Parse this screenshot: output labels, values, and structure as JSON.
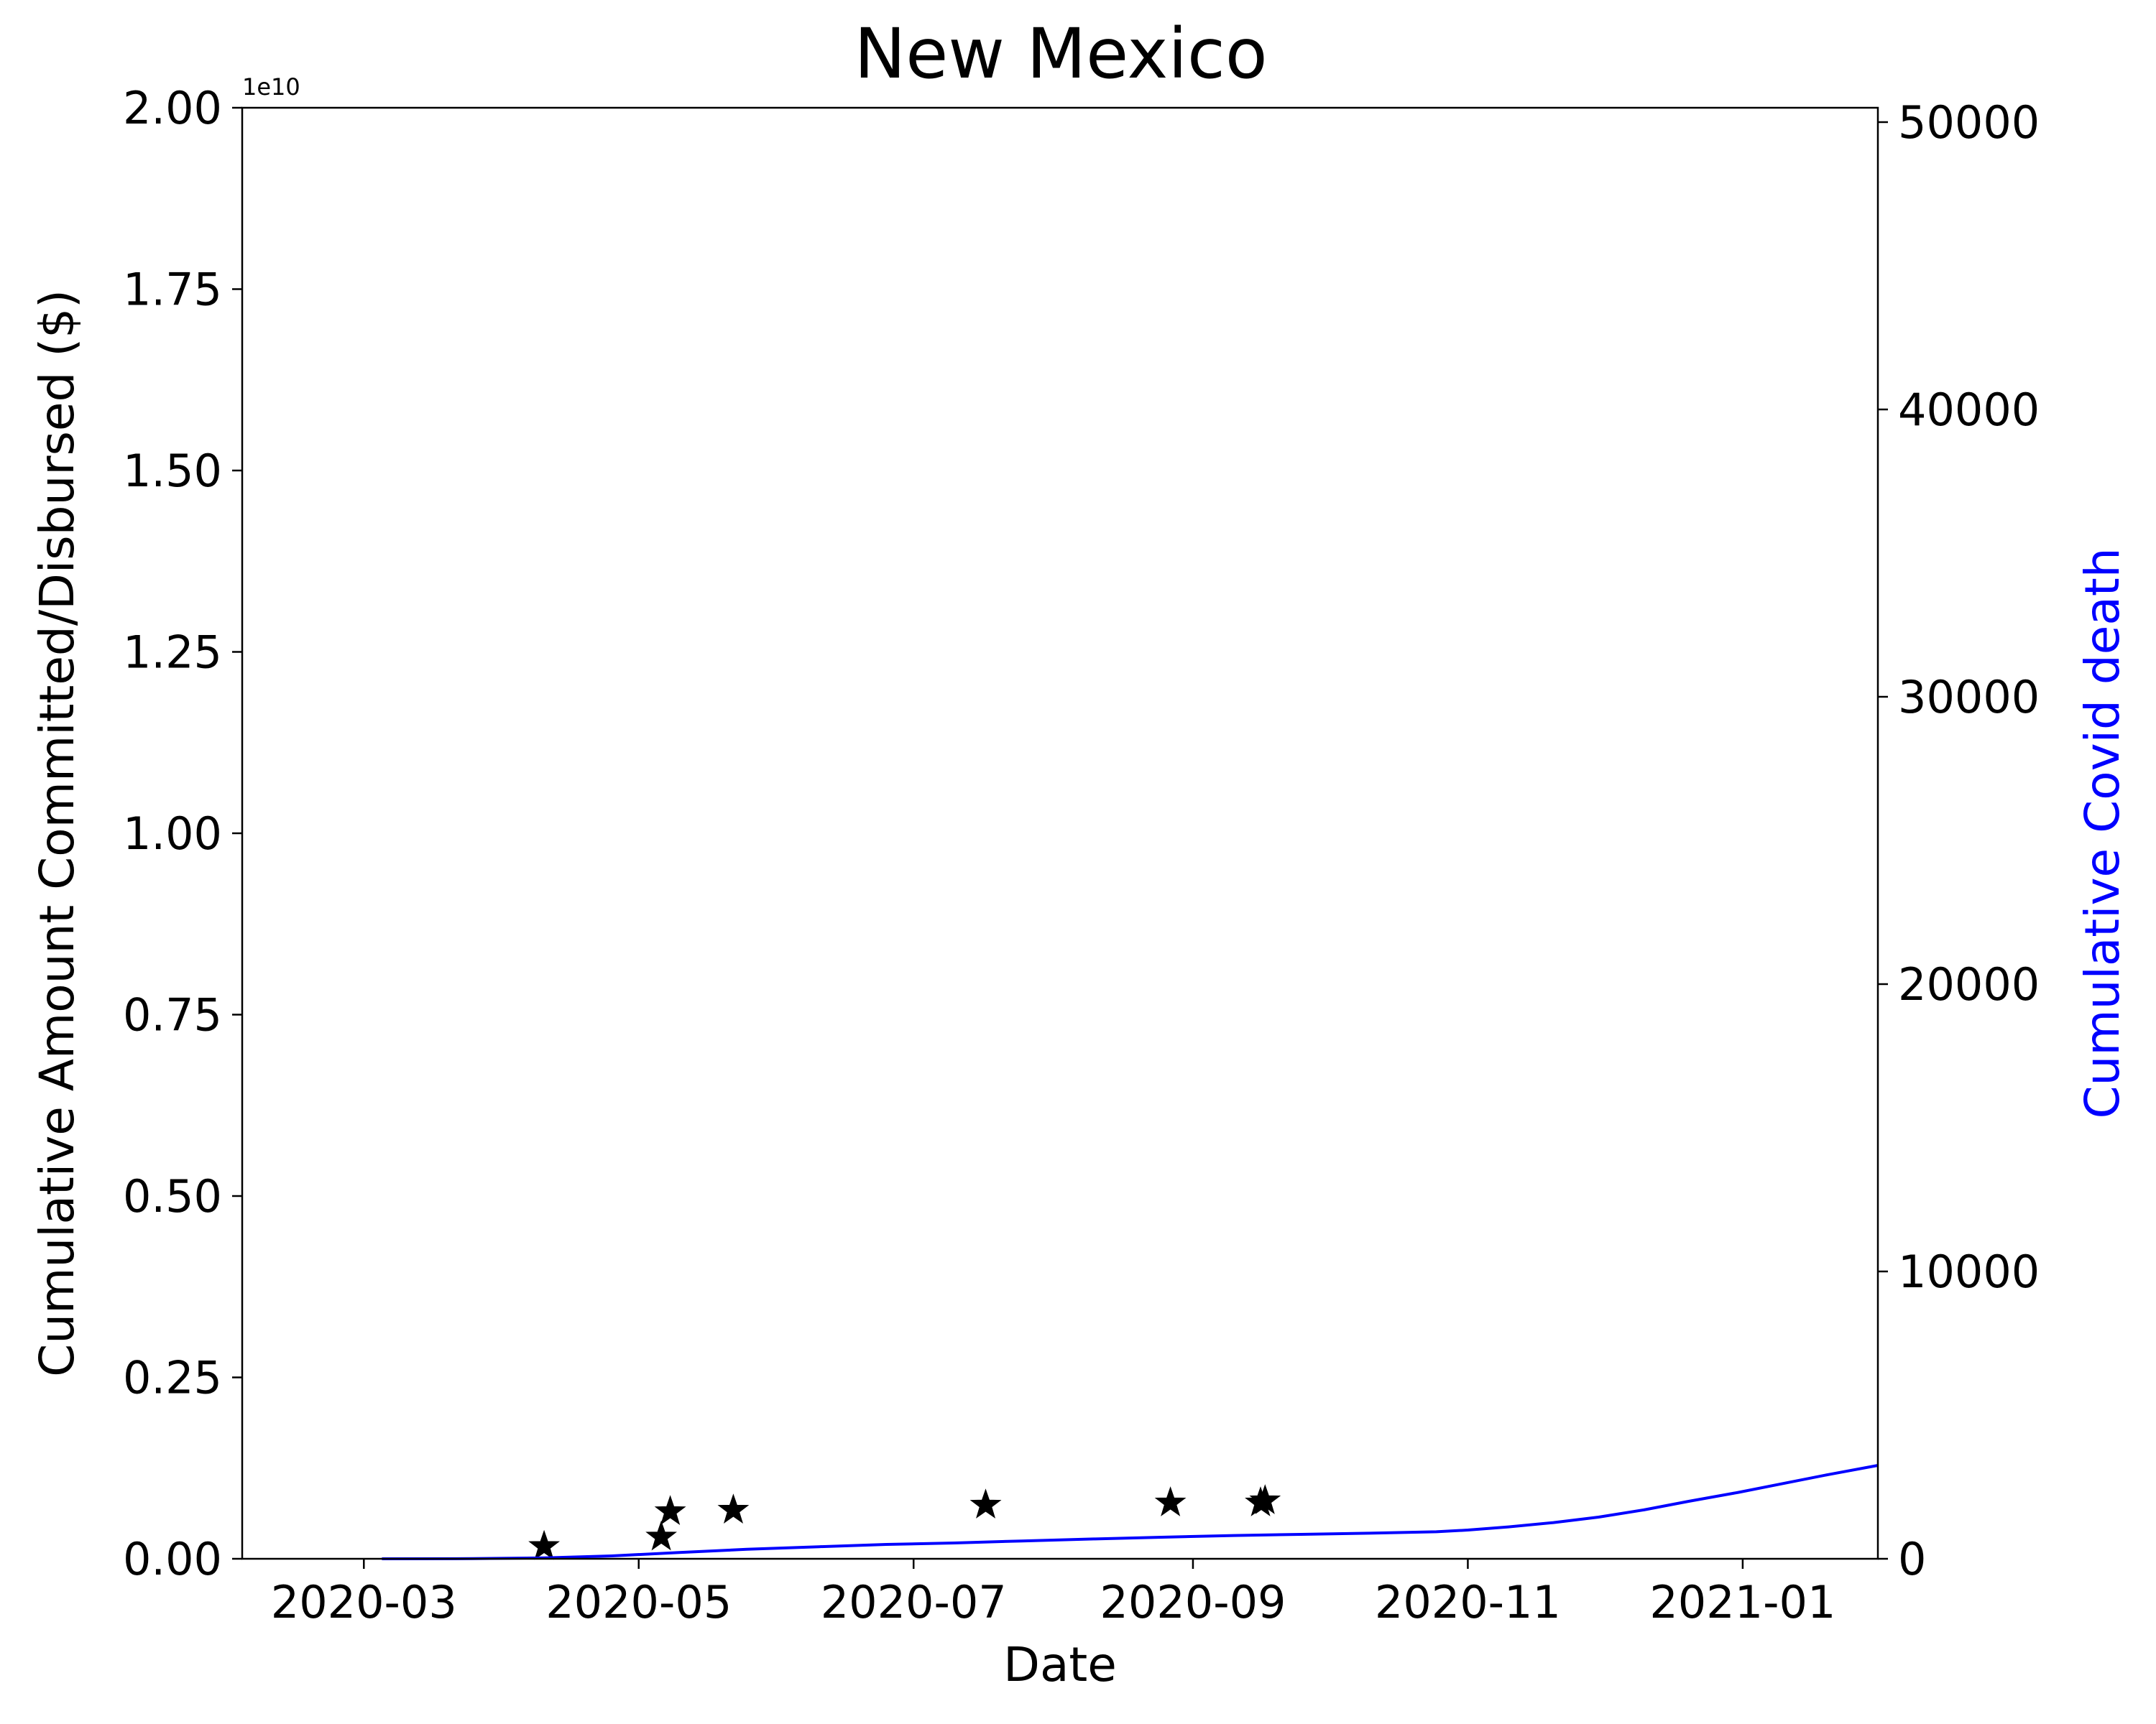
{
  "chart_data": {
    "type": "line",
    "title": "New Mexico",
    "xlabel": "Date",
    "ylabel_left": "Cumulative Amount Committed/Disbursed ($)",
    "ylabel_right": "Cumulative Covid death",
    "left_axis_offset_label": "1e10",
    "x_range": [
      "2020-02-03",
      "2021-01-31"
    ],
    "x_ticks": [
      "2020-03",
      "2020-05",
      "2020-07",
      "2020-09",
      "2020-11",
      "2021-01"
    ],
    "y_left_range": [
      0,
      20000000000
    ],
    "y_left_tick_labels": [
      "0.00",
      "0.25",
      "0.50",
      "0.75",
      "1.00",
      "1.25",
      "1.50",
      "1.75",
      "2.00"
    ],
    "y_right_range": [
      0,
      50500
    ],
    "y_right_tick_labels": [
      "0",
      "10000",
      "20000",
      "30000",
      "40000",
      "50000"
    ],
    "grid": false,
    "colors": {
      "deaths_line": "#0000ff",
      "funding_markers": "#000000",
      "axes": "#000000"
    },
    "series": [
      {
        "kind": "scatter",
        "axis": "left",
        "marker": "star",
        "points": [
          {
            "x": "2020-04-10",
            "y": 170000000
          },
          {
            "x": "2020-05-06",
            "y": 300000000
          },
          {
            "x": "2020-05-08",
            "y": 650000000
          },
          {
            "x": "2020-05-22",
            "y": 670000000
          },
          {
            "x": "2020-07-17",
            "y": 740000000
          },
          {
            "x": "2020-08-27",
            "y": 770000000
          },
          {
            "x": "2020-09-16",
            "y": 770000000
          },
          {
            "x": "2020-09-17",
            "y": 800000000
          }
        ]
      },
      {
        "kind": "line",
        "axis": "right",
        "points": [
          {
            "x": "2020-03-05",
            "y": 0
          },
          {
            "x": "2020-03-25",
            "y": 5
          },
          {
            "x": "2020-04-10",
            "y": 30
          },
          {
            "x": "2020-04-25",
            "y": 100
          },
          {
            "x": "2020-05-10",
            "y": 220
          },
          {
            "x": "2020-05-25",
            "y": 330
          },
          {
            "x": "2020-06-10",
            "y": 420
          },
          {
            "x": "2020-06-25",
            "y": 500
          },
          {
            "x": "2020-07-10",
            "y": 550
          },
          {
            "x": "2020-07-25",
            "y": 620
          },
          {
            "x": "2020-08-10",
            "y": 690
          },
          {
            "x": "2020-08-25",
            "y": 750
          },
          {
            "x": "2020-09-10",
            "y": 810
          },
          {
            "x": "2020-09-25",
            "y": 850
          },
          {
            "x": "2020-10-10",
            "y": 890
          },
          {
            "x": "2020-10-25",
            "y": 940
          },
          {
            "x": "2020-11-01",
            "y": 1000
          },
          {
            "x": "2020-11-10",
            "y": 1110
          },
          {
            "x": "2020-11-20",
            "y": 1260
          },
          {
            "x": "2020-11-30",
            "y": 1450
          },
          {
            "x": "2020-12-10",
            "y": 1700
          },
          {
            "x": "2020-12-20",
            "y": 2000
          },
          {
            "x": "2020-12-31",
            "y": 2310
          },
          {
            "x": "2021-01-10",
            "y": 2620
          },
          {
            "x": "2021-01-20",
            "y": 2930
          },
          {
            "x": "2021-01-31",
            "y": 3250
          }
        ]
      }
    ]
  }
}
